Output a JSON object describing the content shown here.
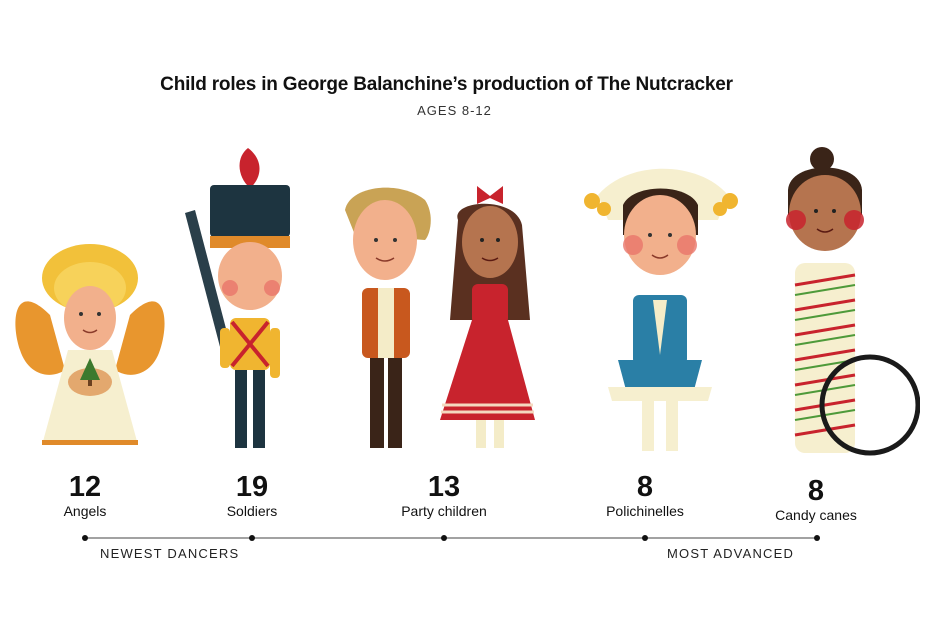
{
  "title": "Child roles in George Balanchine’s production of The Nutcracker",
  "subtitle": "AGES 8-12",
  "roles": [
    {
      "count": "12",
      "label": "Angels",
      "icon": "angel-illustration"
    },
    {
      "count": "19",
      "label": "Soldiers",
      "icon": "soldier-illustration"
    },
    {
      "count": "13",
      "label": "Party children",
      "icon": "party-children-illustration"
    },
    {
      "count": "8",
      "label": "Polichinelles",
      "icon": "polichinelle-illustration"
    },
    {
      "count": "8",
      "label": "Candy canes",
      "icon": "candy-cane-illustration"
    }
  ],
  "scale": {
    "left_label": "NEWEST DANCERS",
    "right_label": "MOST ADVANCED"
  },
  "colors": {
    "skin_light": "#f2b08c",
    "skin_dark": "#b5744f",
    "gold": "#f0b530",
    "orange": "#e08a2a",
    "navy": "#1d3440",
    "red": "#c8232d",
    "teal": "#2a7fa6",
    "cream": "#f4ecc8"
  }
}
